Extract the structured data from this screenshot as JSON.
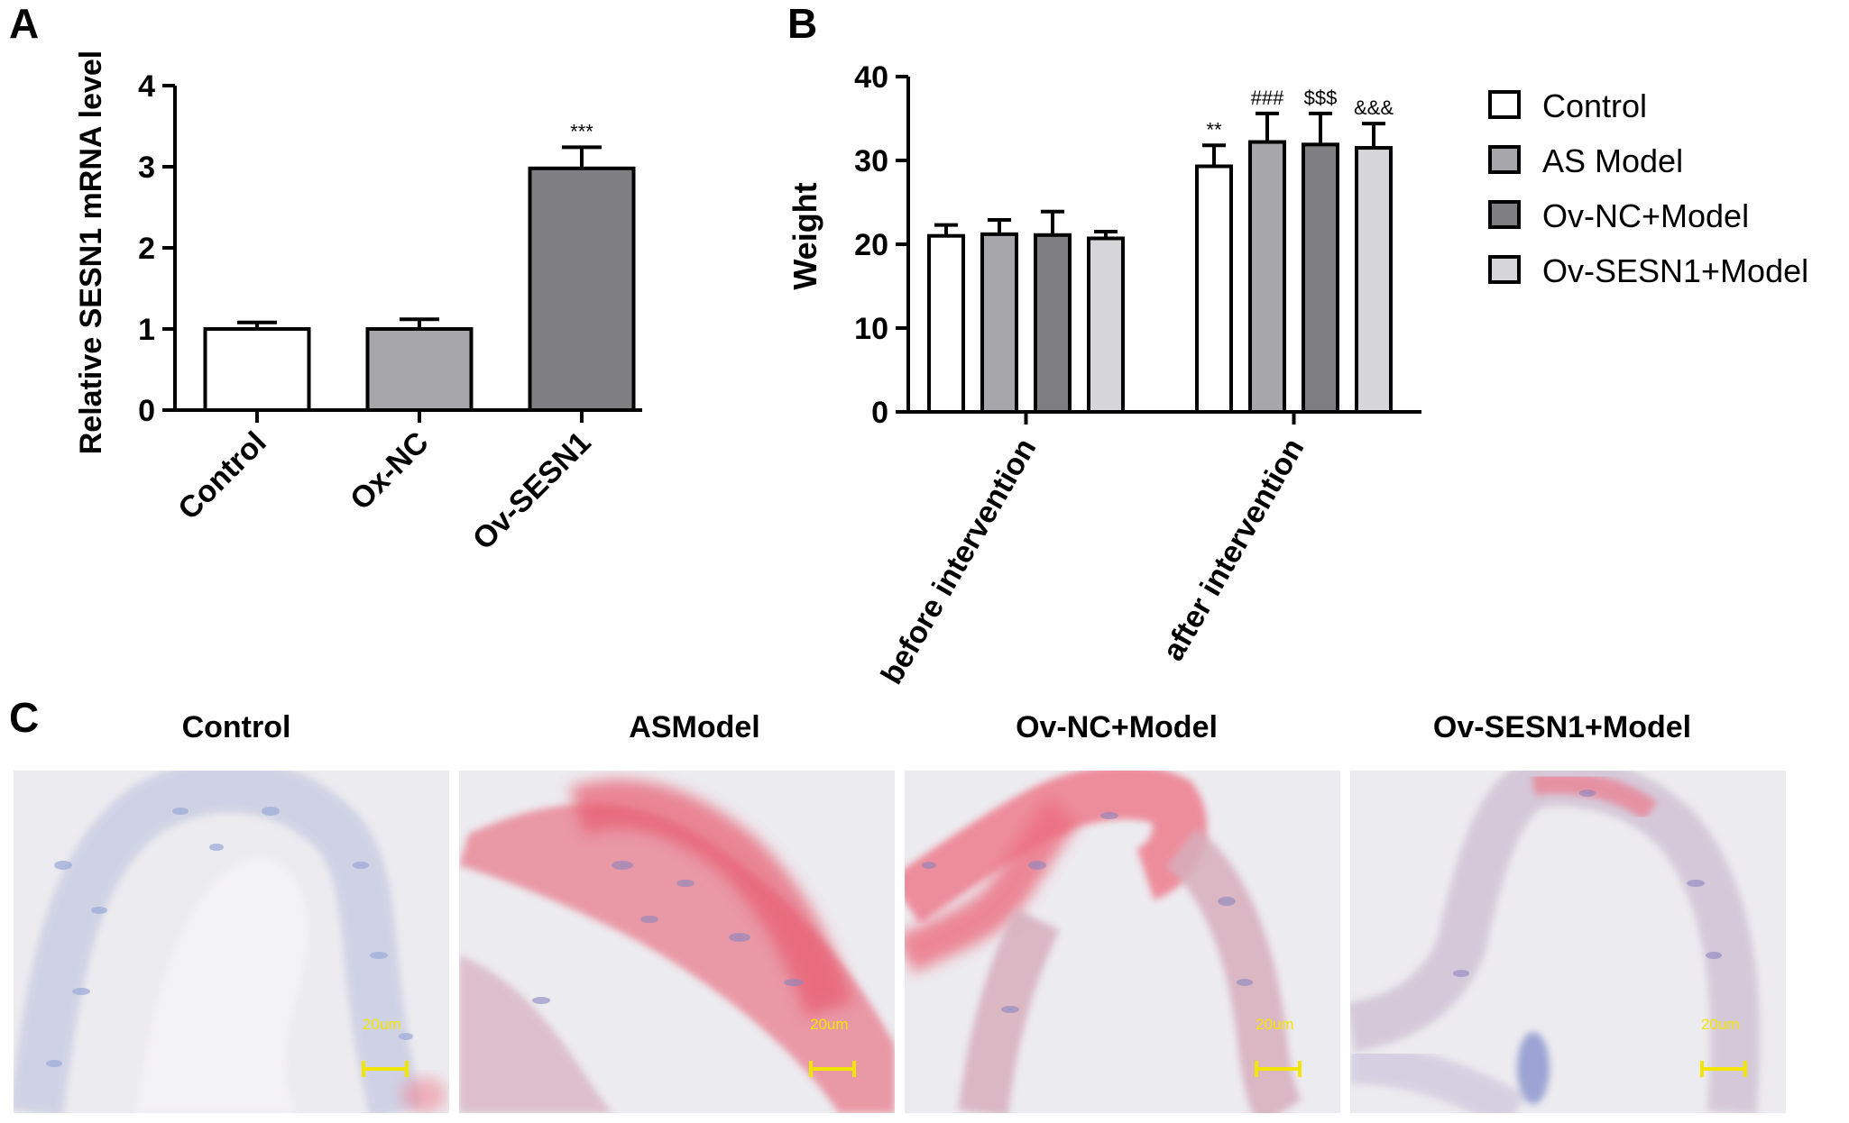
{
  "panel_labels": {
    "a": "A",
    "b": "B",
    "c": "C"
  },
  "chart_data": [
    {
      "type": "bar",
      "panel": "A",
      "ylabel": "Relative SESN1 mRNA level",
      "ylim": [
        0,
        4
      ],
      "yticks": [
        0,
        1,
        2,
        3,
        4
      ],
      "categories": [
        "Control",
        "Ox-NC",
        "Ov-SESN1"
      ],
      "values": [
        1.0,
        1.0,
        2.98
      ],
      "errors": [
        0.08,
        0.12,
        0.26
      ],
      "annotations": [
        "",
        "",
        "***"
      ],
      "colors": [
        "#ffffff",
        "#a7a7ab",
        "#7f7f81"
      ]
    },
    {
      "type": "bar",
      "panel": "B",
      "ylabel": "Weight",
      "ylim": [
        0,
        40
      ],
      "yticks": [
        0,
        10,
        20,
        30,
        40
      ],
      "categories": [
        "before intervention",
        "after  intervention"
      ],
      "series": [
        {
          "name": "Control",
          "color": "#ffffff",
          "values": [
            21.0,
            29.3
          ],
          "errors": [
            1.3,
            2.5
          ],
          "annotations": [
            "",
            "**"
          ]
        },
        {
          "name": "AS Model",
          "color": "#a7a7ab",
          "values": [
            21.2,
            32.2
          ],
          "errors": [
            1.7,
            3.4
          ],
          "annotations": [
            "",
            "###"
          ]
        },
        {
          "name": "Ov-NC+Model",
          "color": "#7f7f81",
          "values": [
            21.1,
            31.9
          ],
          "errors": [
            2.8,
            3.7
          ],
          "annotations": [
            "",
            "$$$"
          ]
        },
        {
          "name": "Ov-SESN1+Model",
          "color": "#d6d6d8",
          "values": [
            20.7,
            31.5
          ],
          "errors": [
            0.8,
            2.9
          ],
          "annotations": [
            "",
            "&&&"
          ]
        }
      ],
      "legend": "right"
    }
  ],
  "images": {
    "titles": [
      "Control",
      "ASModel",
      "Ov-NC+Model",
      "Ov-SESN1+Model"
    ],
    "scale_bar": "20um"
  }
}
